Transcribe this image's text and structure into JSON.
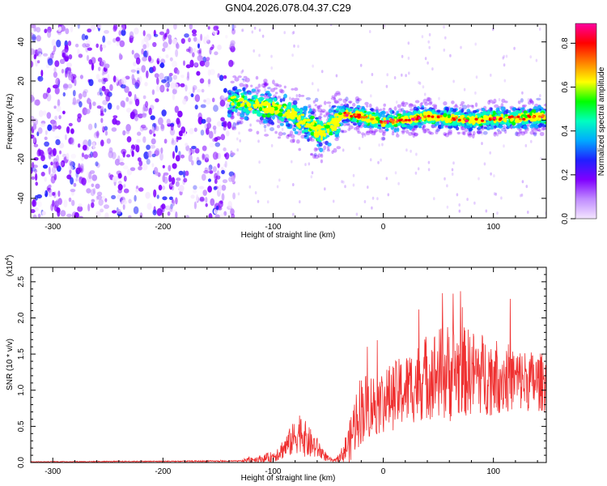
{
  "title": "GN04.2026.078.04.37.C29",
  "colors": {
    "snr_line": "#ef3030",
    "axis": "#000000",
    "colormap": [
      "#f4e6ff",
      "#c08cff",
      "#8000ff",
      "#2020ff",
      "#00aaff",
      "#00ffc0",
      "#00ff00",
      "#ffff00",
      "#ff8000",
      "#ff0000",
      "#ff00a0"
    ]
  },
  "chart_data": [
    {
      "type": "heatmap",
      "name": "spectrogram",
      "xlabel": "Height of straight line (km)",
      "ylabel": "Frequency (Hz)",
      "xlim": [
        -320,
        148
      ],
      "ylim": [
        -50,
        49
      ],
      "xticks": [
        -300,
        -200,
        -100,
        0,
        100
      ],
      "xtick_labels": [
        "-300",
        "-200",
        "-100",
        "0",
        "100"
      ],
      "yticks": [
        -40,
        -20,
        0,
        20,
        40
      ],
      "ytick_labels": [
        "-40",
        "-20",
        "0",
        "20",
        "40"
      ],
      "colorbar": {
        "label": "Normalized spectral amplitude",
        "range": [
          0,
          0.89
        ],
        "ticks": [
          0,
          0.2,
          0.4,
          0.6,
          0.8
        ],
        "tick_labels": [
          "0.0",
          "0.2",
          "0.4",
          "0.6",
          "0.8"
        ]
      },
      "noise_region_end_km": -140,
      "signal_track": {
        "x": [
          -140,
          -120,
          -100,
          -80,
          -65,
          -55,
          -45,
          -35,
          -20,
          0,
          20,
          40,
          60,
          80,
          100,
          120,
          148
        ],
        "y": [
          10,
          8,
          6,
          3,
          -2,
          -5,
          0,
          3,
          2,
          -1,
          0,
          2,
          1,
          0,
          1,
          1,
          2
        ]
      }
    },
    {
      "type": "line",
      "name": "snr",
      "xlabel": "Height of straight line (km)",
      "ylabel": "SNR (10 * v/v)",
      "multiplier_label": "(x10",
      "multiplier_exp": "4",
      "multiplier_close": ")",
      "xlim": [
        -320,
        148
      ],
      "ylim": [
        0,
        2.7
      ],
      "xticks": [
        -300,
        -200,
        -100,
        0,
        100
      ],
      "xtick_labels": [
        "-300",
        "-200",
        "-100",
        "0",
        "100"
      ],
      "yticks": [
        0,
        0.5,
        1.0,
        1.5,
        2.0,
        2.5
      ],
      "ytick_labels": [
        "0.0",
        "0.5",
        "1.0",
        "1.5",
        "2.0",
        "2.5"
      ],
      "envelope": {
        "x": [
          -320,
          -130,
          -120,
          -110,
          -100,
          -90,
          -80,
          -75,
          -70,
          -60,
          -50,
          -45,
          -40,
          -30,
          -25,
          -20,
          -10,
          0,
          20,
          40,
          60,
          80,
          100,
          120,
          148
        ],
        "mean": [
          0.01,
          0.02,
          0.04,
          0.05,
          0.08,
          0.2,
          0.35,
          0.45,
          0.3,
          0.2,
          0.05,
          0.02,
          0.05,
          0.3,
          0.6,
          0.75,
          0.8,
          0.85,
          1.0,
          1.2,
          1.25,
          1.25,
          1.2,
          1.15,
          1.1
        ],
        "spread": [
          0.005,
          0.01,
          0.05,
          0.05,
          0.08,
          0.15,
          0.25,
          0.3,
          0.25,
          0.15,
          0.04,
          0.02,
          0.05,
          0.3,
          0.45,
          0.5,
          0.45,
          0.45,
          0.5,
          0.6,
          0.7,
          0.6,
          0.55,
          0.45,
          0.4
        ]
      }
    }
  ]
}
